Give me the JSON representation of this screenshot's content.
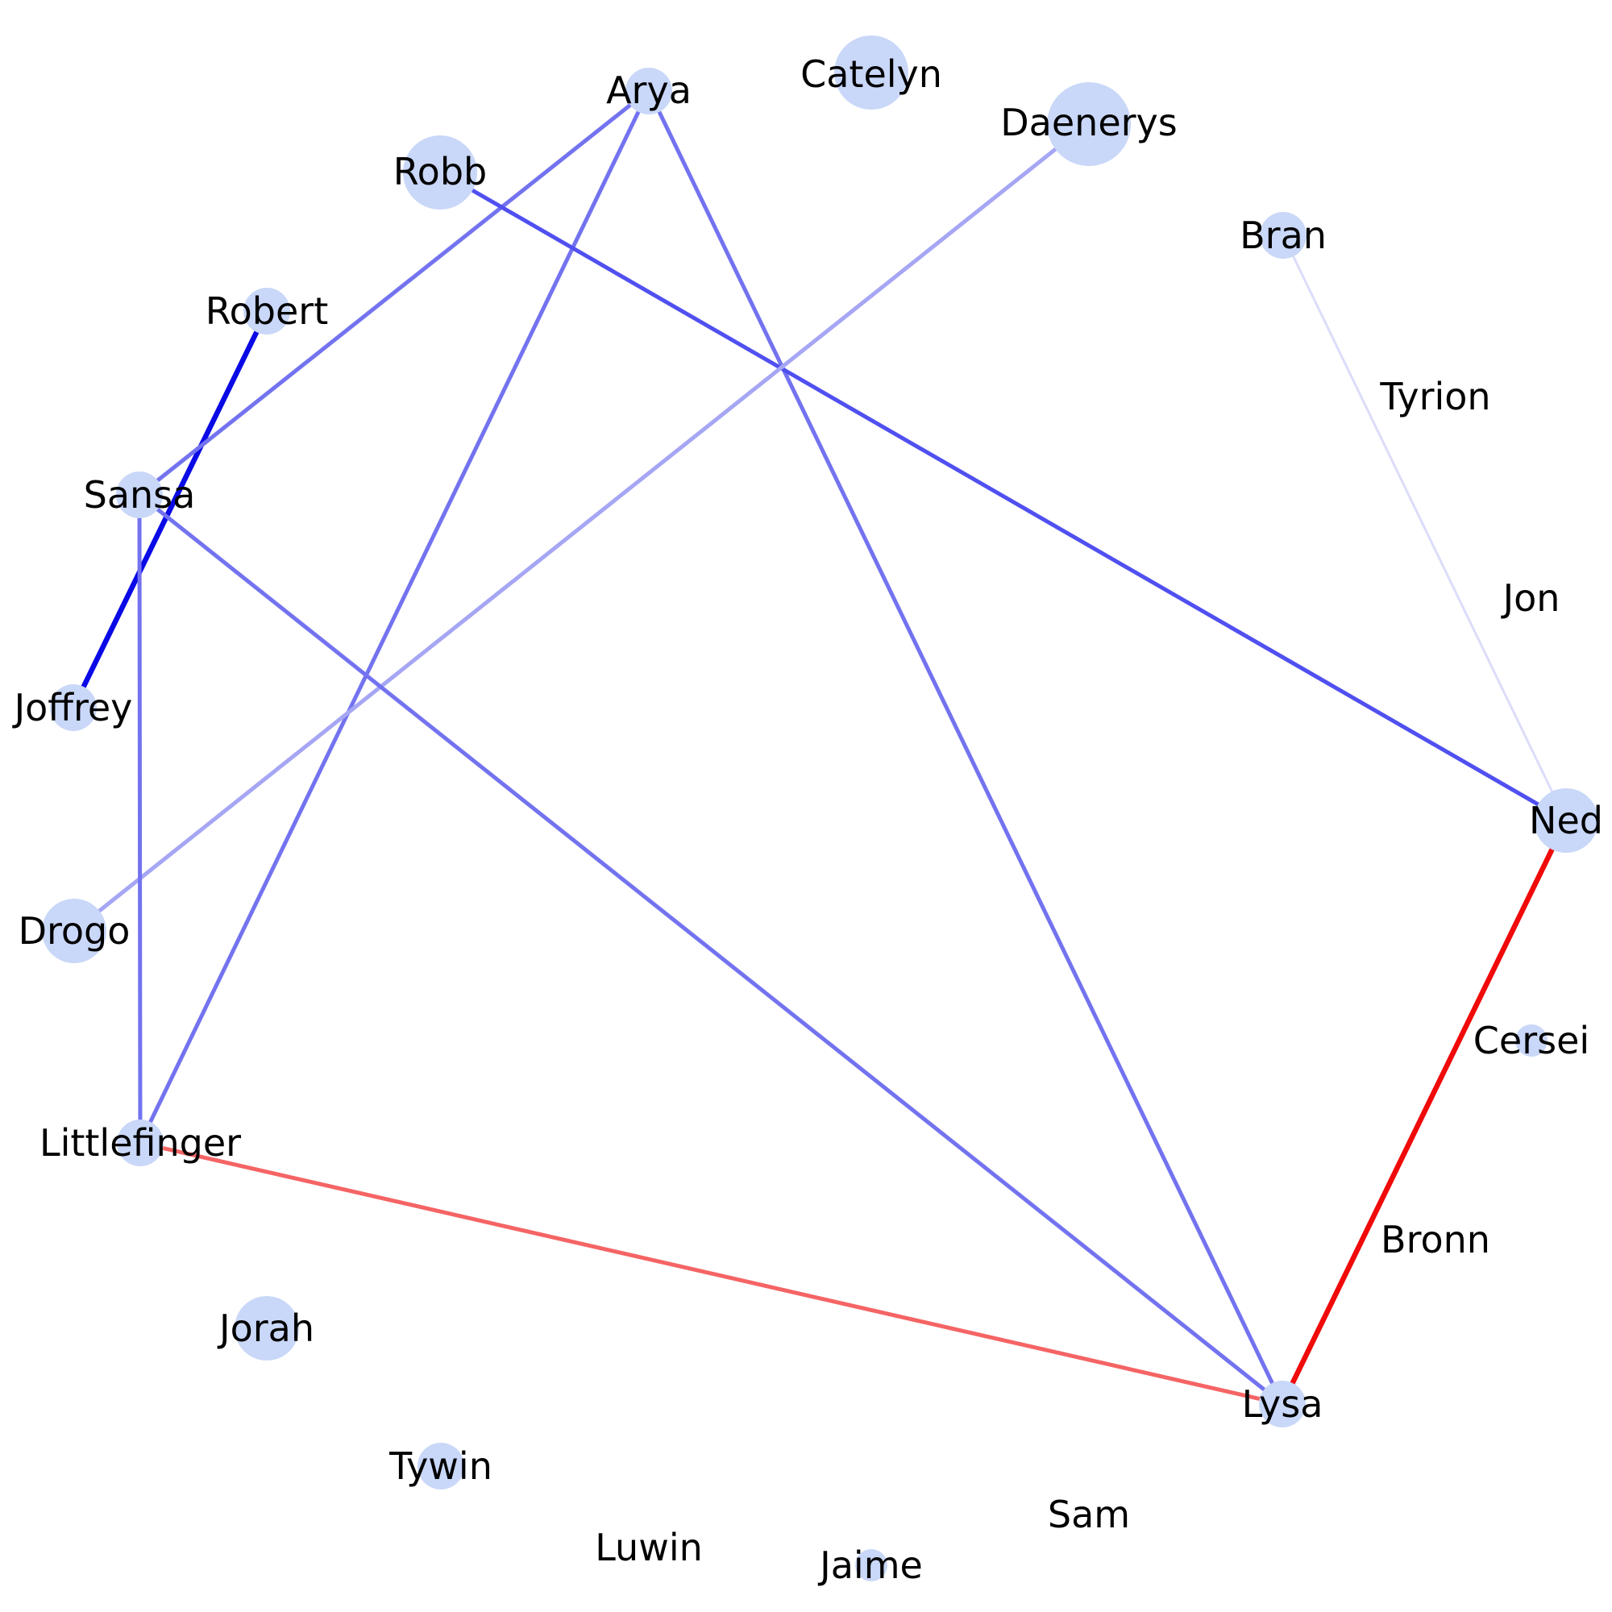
{
  "colors": {
    "node_fill": "#c9d7f8",
    "background": "#ffffff"
  },
  "nodes": [
    {
      "id": "Arya",
      "label": "Arya",
      "size": "small"
    },
    {
      "id": "Catelyn",
      "label": "Catelyn",
      "size": "large"
    },
    {
      "id": "Daenerys",
      "label": "Daenerys",
      "size": "xlarge"
    },
    {
      "id": "Robb",
      "label": "Robb",
      "size": "large"
    },
    {
      "id": "Bran",
      "label": "Bran",
      "size": "small"
    },
    {
      "id": "Robert",
      "label": "Robert",
      "size": "small"
    },
    {
      "id": "Tyrion",
      "label": "Tyrion",
      "size": "none"
    },
    {
      "id": "Sansa",
      "label": "Sansa",
      "size": "small"
    },
    {
      "id": "Jon",
      "label": "Jon",
      "size": "none"
    },
    {
      "id": "Joffrey",
      "label": "Joffrey",
      "size": "small"
    },
    {
      "id": "Ned",
      "label": "Ned",
      "size": "medium"
    },
    {
      "id": "Drogo",
      "label": "Drogo",
      "size": "medium"
    },
    {
      "id": "Cersei",
      "label": "Cersei",
      "size": "tiny"
    },
    {
      "id": "Littlefinger",
      "label": "Littlefinger",
      "size": "small"
    },
    {
      "id": "Bronn",
      "label": "Bronn",
      "size": "none"
    },
    {
      "id": "Jorah",
      "label": "Jorah",
      "size": "medium"
    },
    {
      "id": "Lysa",
      "label": "Lysa",
      "size": "small"
    },
    {
      "id": "Tywin",
      "label": "Tywin",
      "size": "small"
    },
    {
      "id": "Sam",
      "label": "Sam",
      "size": "none"
    },
    {
      "id": "Luwin",
      "label": "Luwin",
      "size": "none"
    },
    {
      "id": "Jaime",
      "label": "Jaime",
      "size": "tiny"
    }
  ],
  "edges": [
    {
      "source": "Robert",
      "target": "Joffrey",
      "color": "#0a0ae6",
      "weight": "heavy"
    },
    {
      "source": "Arya",
      "target": "Sansa",
      "color": "#7373f0",
      "weight": "normal"
    },
    {
      "source": "Arya",
      "target": "Littlefinger",
      "color": "#7373f0",
      "weight": "normal"
    },
    {
      "source": "Arya",
      "target": "Lysa",
      "color": "#7373f0",
      "weight": "normal"
    },
    {
      "source": "Robb",
      "target": "Ned",
      "color": "#5050f0",
      "weight": "normal"
    },
    {
      "source": "Daenerys",
      "target": "Drogo",
      "color": "#a6a6f5",
      "weight": "normal"
    },
    {
      "source": "Bran",
      "target": "Ned",
      "color": "#dcdcfa",
      "weight": "thin"
    },
    {
      "source": "Sansa",
      "target": "Littlefinger",
      "color": "#7373f0",
      "weight": "normal"
    },
    {
      "source": "Sansa",
      "target": "Lysa",
      "color": "#7373f0",
      "weight": "normal"
    },
    {
      "source": "Ned",
      "target": "Lysa",
      "color": "#f00a0a",
      "weight": "heavy"
    },
    {
      "source": "Littlefinger",
      "target": "Lysa",
      "color": "#f56464",
      "weight": "normal"
    }
  ]
}
